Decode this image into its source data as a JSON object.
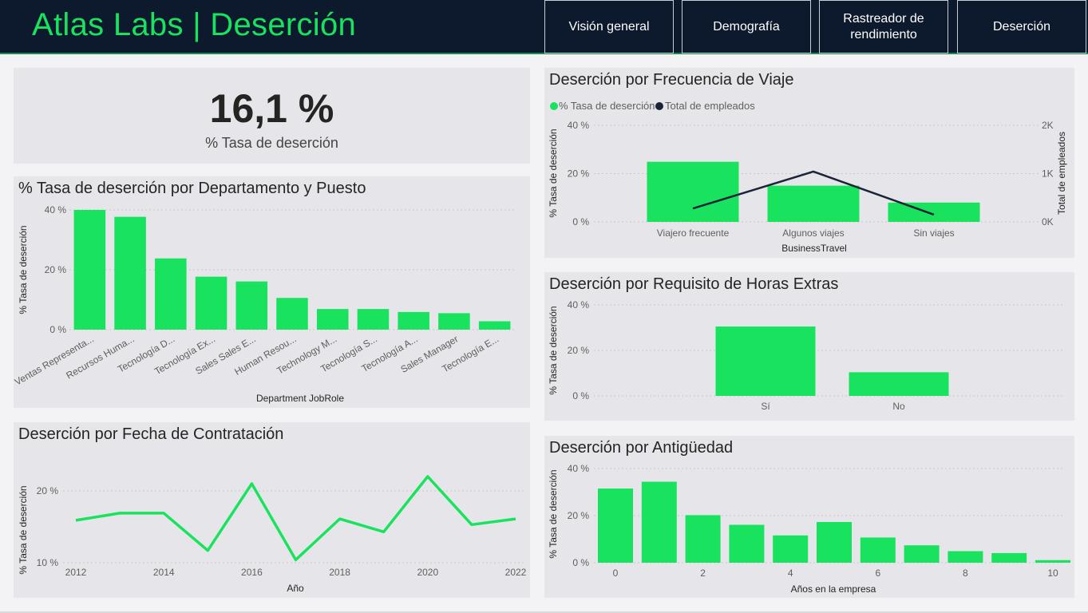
{
  "header": {
    "title": "Atlas Labs | Deserción",
    "nav": [
      "Visión general",
      "Demografía",
      "Rastreador de rendimiento",
      "Deserción"
    ]
  },
  "kpi": {
    "value": "16,1 %",
    "label": "% Tasa de deserción"
  },
  "colors": {
    "accent": "#19e35e",
    "navy": "#0d1a2e",
    "panel": "#e6e6ea",
    "line": "#1b2338"
  },
  "charts": {
    "department": {
      "title": "% Tasa de deserción por Departamento y Puesto",
      "chart_data": {
        "type": "bar",
        "categories": [
          "Ventas Representa...",
          "Recursos Huma...",
          "Tecnología D...",
          "Tecnología Ex...",
          "Sales Sales E...",
          "Human Resou...",
          "Technology M...",
          "Tecnología S...",
          "Tecnología A...",
          "Sales Manager",
          "Tecnología E..."
        ],
        "values": [
          40,
          37.7,
          23.8,
          17.7,
          16.1,
          10.6,
          6.9,
          6.9,
          5.9,
          5.5,
          2.8
        ],
        "xlabel": "Department JobRole",
        "ylabel": "% Tasa de deserción",
        "yticks": [
          "0 %",
          "20 %",
          "40 %"
        ],
        "ylim": [
          0,
          40
        ]
      }
    },
    "hire": {
      "title": "Deserción por Fecha de Contratación",
      "chart_data": {
        "type": "line",
        "x": [
          2012,
          2013,
          2014,
          2015,
          2016,
          2017,
          2018,
          2019,
          2020,
          2021,
          2022
        ],
        "values": [
          15.9,
          16.9,
          16.9,
          11.7,
          21.0,
          10.4,
          16.1,
          14.3,
          22.0,
          15.3,
          16.1
        ],
        "xticks": [
          "2012",
          "2014",
          "2016",
          "2018",
          "2020",
          "2022"
        ],
        "xlabel": "Año",
        "ylabel": "% Tasa de deserción",
        "yticks": [
          "10 %",
          "20 %"
        ],
        "ylim": [
          10,
          20
        ]
      }
    },
    "travel": {
      "title": "Deserción por Frecuencia de Viaje",
      "legend": [
        "% Tasa de deserción",
        "Total de empleados"
      ],
      "chart_data": {
        "type": "bar",
        "categories": [
          "Viajero frecuente",
          "Algunos viajes",
          "Sin viajes"
        ],
        "series": [
          {
            "name": "% Tasa de deserción",
            "values": [
              24.9,
              15.0,
              8.0
            ]
          },
          {
            "name": "Total de empleados",
            "values": [
              277,
              1043,
              150
            ]
          }
        ],
        "xlabel": "BusinessTravel",
        "ylabel": "% Tasa de deserción",
        "y2label": "Total de empleados",
        "yticks": [
          "0 %",
          "20 %",
          "40 %"
        ],
        "y2ticks": [
          "0K",
          "1K",
          "2K"
        ],
        "ylim": [
          0,
          40
        ],
        "y2lim": [
          0,
          2000
        ]
      }
    },
    "overtime": {
      "title": "Deserción por Requisito de Horas Extras",
      "chart_data": {
        "type": "bar",
        "categories": [
          "Sí",
          "No"
        ],
        "values": [
          30.5,
          10.4
        ],
        "ylabel": "% Tasa de deserción",
        "yticks": [
          "0 %",
          "20 %",
          "40 %"
        ],
        "ylim": [
          0,
          40
        ]
      }
    },
    "tenure": {
      "title": "Deserción por Antigüedad",
      "chart_data": {
        "type": "bar",
        "categories": [
          "0",
          "1",
          "2",
          "3",
          "4",
          "5",
          "6",
          "7",
          "8",
          "9",
          "10"
        ],
        "values": [
          31.5,
          34.4,
          20.2,
          16.1,
          11.6,
          17.3,
          10.7,
          7.4,
          4.9,
          4.1,
          1.1
        ],
        "xticks": [
          "0",
          "2",
          "4",
          "6",
          "8",
          "10"
        ],
        "xlabel": "Años en la empresa",
        "ylabel": "% Tasa de deserción",
        "yticks": [
          "0 %",
          "20 %",
          "40 %"
        ],
        "ylim": [
          0,
          40
        ]
      }
    }
  }
}
